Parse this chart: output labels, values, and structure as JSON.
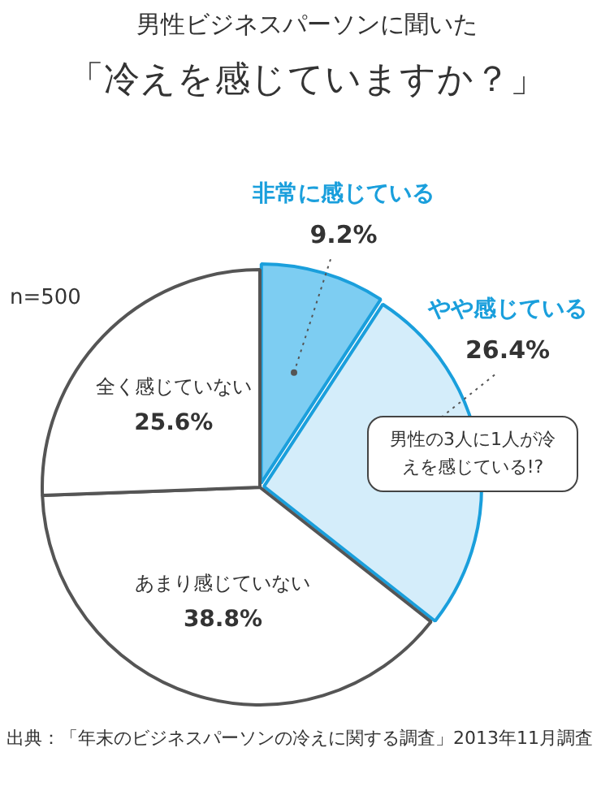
{
  "chart_data": {
    "type": "pie",
    "subtitle": "男性ビジネスパーソンに聞いた",
    "title": "「冷えを感じていますか？」",
    "categories": [
      "非常に感じている",
      "やや感じている",
      "あまり感じていない",
      "全く感じていない"
    ],
    "values": [
      9.2,
      26.4,
      38.8,
      25.6
    ],
    "value_labels": [
      "9.2%",
      "26.4%",
      "38.8%",
      "25.6%"
    ],
    "colors": [
      "#7dcdf2",
      "#d4edfa",
      "#ffffff",
      "#ffffff"
    ],
    "annotations": [
      "n=500",
      "男性の3人に1人が冷えを感じている!?",
      "出典：「年末のビジネスパーソンの冷えに関する調査」2013年11月調査"
    ]
  }
}
